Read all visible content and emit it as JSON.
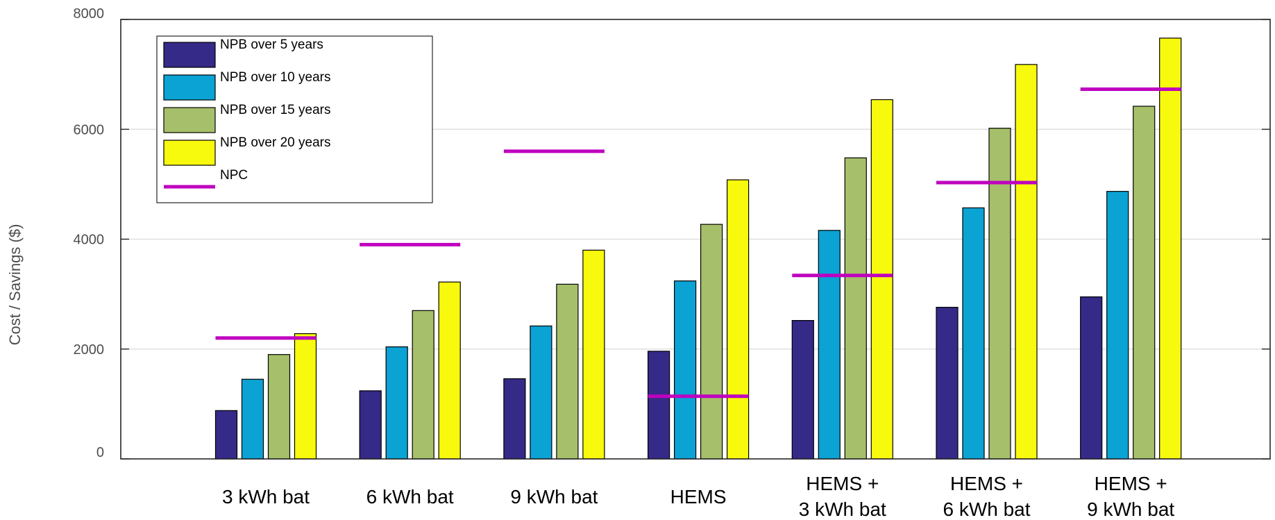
{
  "chart_data": {
    "type": "bar",
    "title": "",
    "xlabel": "",
    "ylabel": "Cost / Savings ($)",
    "ylim": [
      0,
      8000
    ],
    "yticks": [
      0,
      2000,
      4000,
      6000,
      8000
    ],
    "grid": "horizontal",
    "legend_position": "top-left",
    "categories": [
      [
        "3 kWh bat"
      ],
      [
        "6 kWh bat"
      ],
      [
        "9 kWh bat"
      ],
      [
        "HEMS"
      ],
      [
        "HEMS +",
        "3 kWh bat"
      ],
      [
        "HEMS +",
        "6 kWh bat"
      ],
      [
        "HEMS +",
        "9 kWh bat"
      ]
    ],
    "series": [
      {
        "name": "NPB over 5 years",
        "color": "#352a87",
        "values": [
          880,
          1240,
          1460,
          1960,
          2520,
          2760,
          2950
        ]
      },
      {
        "name": "NPB over 10 years",
        "color": "#0ba2d4",
        "values": [
          1450,
          2040,
          2420,
          3240,
          4160,
          4570,
          4870
        ]
      },
      {
        "name": "NPB over 15 years",
        "color": "#a6bf6a",
        "values": [
          1900,
          2700,
          3180,
          4270,
          5480,
          6020,
          6420
        ]
      },
      {
        "name": "NPB over 20 years",
        "color": "#f8fa0d",
        "values": [
          2280,
          3220,
          3800,
          5080,
          6540,
          7180,
          7660
        ]
      }
    ],
    "lines": [
      {
        "name": "NPC",
        "color": "#bf00bf",
        "values": [
          2200,
          3900,
          5600,
          1140,
          3340,
          5030,
          6730
        ]
      }
    ]
  }
}
